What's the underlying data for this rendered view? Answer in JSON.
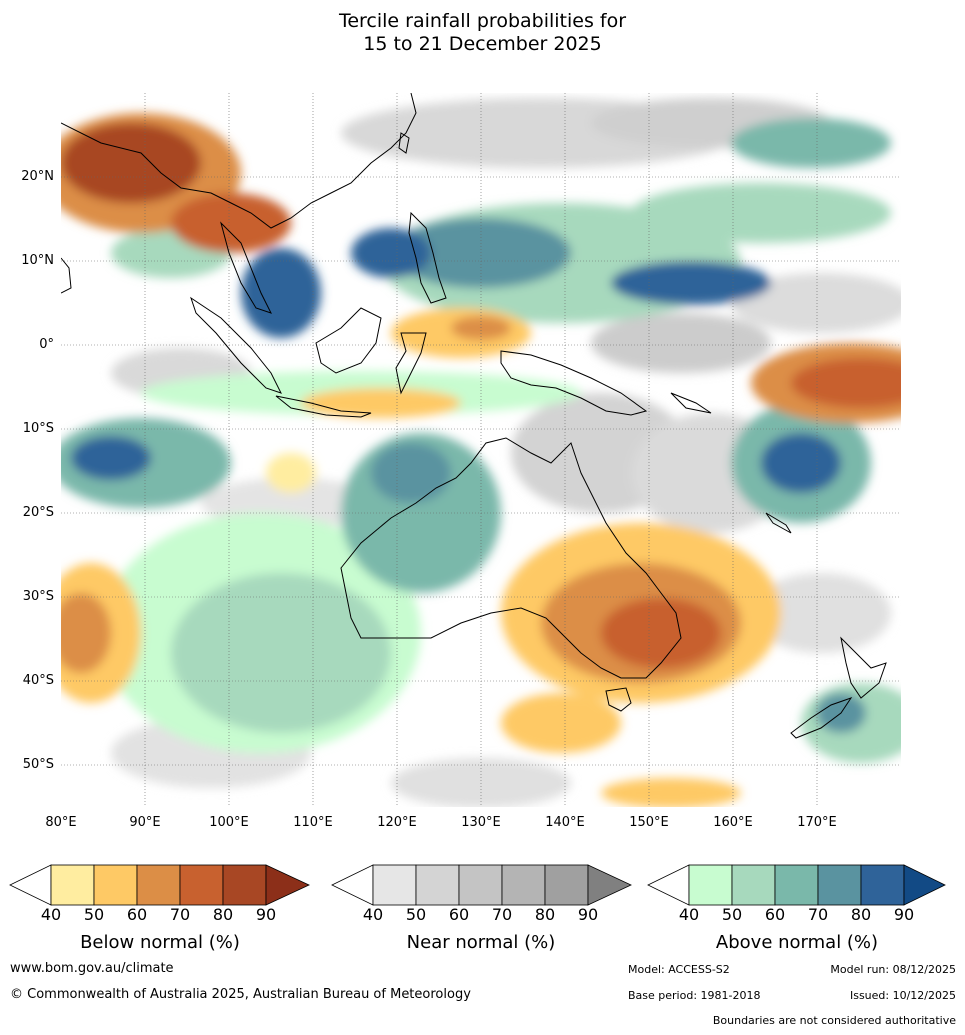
{
  "title": {
    "line1": "Tercile rainfall probabilities for",
    "line2": "15 to 21 December 2025"
  },
  "map": {
    "region": "Indian Ocean, Maritime Continent, Australia and Western Pacific",
    "lat_labels": [
      "20°N",
      "10°N",
      "0°",
      "10°S",
      "20°S",
      "30°S",
      "40°S",
      "50°S"
    ],
    "lon_labels": [
      "80°E",
      "90°E",
      "100°E",
      "110°E",
      "120°E",
      "130°E",
      "140°E",
      "150°E",
      "160°E",
      "170°E"
    ]
  },
  "legends": {
    "below": {
      "title": "Below normal (%)",
      "ticks": [
        "40",
        "50",
        "60",
        "70",
        "80",
        "90"
      ],
      "colors": [
        "#ffffff",
        "#ffeda0",
        "#fec965",
        "#dc8e46",
        "#c8612f",
        "#a84724",
        "#8c2f19"
      ]
    },
    "near": {
      "title": "Near normal (%)",
      "ticks": [
        "40",
        "50",
        "60",
        "70",
        "80",
        "90"
      ],
      "colors": [
        "#ffffff",
        "#e6e6e6",
        "#d4d4d4",
        "#c4c4c4",
        "#b4b4b4",
        "#a0a0a0",
        "#808080"
      ]
    },
    "above": {
      "title": "Above normal (%)",
      "ticks": [
        "40",
        "50",
        "60",
        "70",
        "80",
        "90"
      ],
      "colors": [
        "#ffffff",
        "#c8fcd0",
        "#a7d9bd",
        "#7ab8aa",
        "#5a93a0",
        "#2f6399",
        "#124a85"
      ]
    }
  },
  "footer": {
    "website": "www.bom.gov.au/climate",
    "copyright": "© Commonwealth of Australia 2025, Australian Bureau of Meteorology",
    "model": "Model: ACCESS-S2",
    "model_run": "Model run: 08/12/2025",
    "base_period": "Base period: 1981-2018",
    "issued": "Issued: 10/12/2025",
    "disclaimer": "Boundaries are not considered authoritative"
  }
}
